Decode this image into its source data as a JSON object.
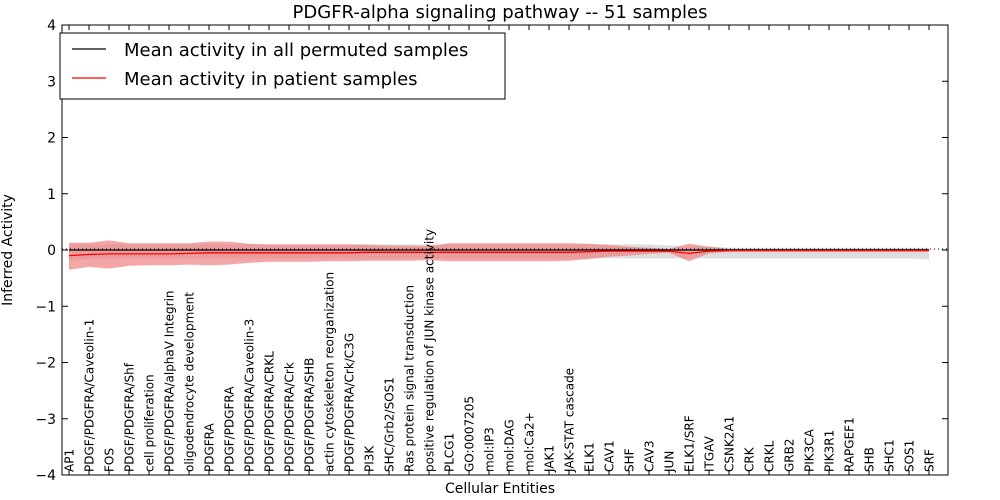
{
  "chart_data": {
    "type": "line",
    "title": "PDGFR-alpha signaling pathway -- 51 samples",
    "xlabel": "Cellular Entities",
    "ylabel": "Inferred Activity",
    "ylim": [
      -4,
      4
    ],
    "yticks": [
      "−4",
      "−3",
      "−2",
      "−1",
      "0",
      "1",
      "2",
      "3",
      "4"
    ],
    "grid": false,
    "legend_position": "top-left",
    "reference_line": 0,
    "categories": [
      "AP1",
      "PDGF/PDGFRA/Caveolin-1",
      "FOS",
      "PDGF/PDGFRA/Shf",
      "cell proliferation",
      "PDGF/PDGFRA/alphaV Integrin",
      "oligodendrocyte development",
      "PDGFRA",
      "PDGF/PDGFRA",
      "PDGF/PDGFRA/Caveolin-3",
      "PDGF/PDGFRA/CRKL",
      "PDGF/PDGFRA/Crk",
      "PDGF/PDGFRA/SHB",
      "actin cytoskeleton reorganization",
      "PDGF/PDGFRA/Crk/C3G",
      "PI3K",
      "SHC/Grb2/SOS1",
      "Ras protein signal transduction",
      "positive regulation of JUN kinase activity",
      "PLCG1",
      "GO:0007205",
      "mol:IP3",
      "mol:DAG",
      "mol:Ca2+",
      "JAK1",
      "JAK-STAT cascade",
      "ELK1",
      "CAV1",
      "SHF",
      "CAV3",
      "JUN",
      "ELK1/SRF",
      "ITGAV",
      "CSNK2A1",
      "CRK",
      "CRKL",
      "GRB2",
      "PIK3CA",
      "PIK3R1",
      "RAPGEF1",
      "SHB",
      "SHC1",
      "SOS1",
      "SRF"
    ],
    "series": [
      {
        "name": "Mean activity in all permuted samples",
        "color": "#000000",
        "values": [
          0,
          0,
          0,
          0,
          0,
          0,
          0,
          0,
          0,
          0,
          0,
          0,
          0,
          0,
          0,
          0,
          0,
          0,
          0,
          0,
          0,
          0,
          0,
          0,
          0,
          0,
          0,
          0,
          0,
          0,
          0,
          0,
          0,
          0,
          0,
          0,
          0,
          0,
          0,
          0,
          0,
          0,
          0,
          0
        ],
        "band_upper": [
          0.1,
          0.1,
          0.1,
          0.1,
          0.1,
          0.1,
          0.1,
          0.1,
          0.1,
          0.1,
          0.1,
          0.1,
          0.1,
          0.1,
          0.1,
          0.1,
          0.1,
          0.1,
          0.1,
          0.1,
          0.1,
          0.1,
          0.1,
          0.1,
          0.1,
          0.1,
          0.1,
          0.1,
          0.1,
          0.1,
          0.08,
          0.06,
          0.06,
          0.04,
          0.04,
          0.04,
          0.04,
          0.04,
          0.04,
          0.04,
          0.04,
          0.04,
          0.04,
          0.04
        ],
        "band_lower": [
          -0.18,
          -0.16,
          -0.16,
          -0.15,
          -0.15,
          -0.15,
          -0.15,
          -0.15,
          -0.15,
          -0.15,
          -0.15,
          -0.15,
          -0.15,
          -0.15,
          -0.15,
          -0.15,
          -0.15,
          -0.15,
          -0.15,
          -0.15,
          -0.15,
          -0.15,
          -0.15,
          -0.15,
          -0.15,
          -0.15,
          -0.15,
          -0.15,
          -0.15,
          -0.15,
          -0.15,
          -0.15,
          -0.15,
          -0.15,
          -0.15,
          -0.15,
          -0.15,
          -0.15,
          -0.15,
          -0.15,
          -0.15,
          -0.15,
          -0.15,
          -0.17
        ],
        "band_color": "#c8c8c8"
      },
      {
        "name": "Mean activity in patient samples",
        "color": "#ff0000",
        "values": [
          -0.1,
          -0.08,
          -0.07,
          -0.07,
          -0.07,
          -0.07,
          -0.06,
          -0.05,
          -0.05,
          -0.05,
          -0.05,
          -0.05,
          -0.05,
          -0.05,
          -0.05,
          -0.04,
          -0.04,
          -0.04,
          -0.04,
          -0.04,
          -0.04,
          -0.04,
          -0.04,
          -0.04,
          -0.04,
          -0.04,
          -0.03,
          -0.02,
          -0.02,
          -0.02,
          -0.02,
          -0.06,
          -0.02,
          -0.01,
          -0.01,
          -0.01,
          -0.01,
          -0.01,
          -0.01,
          -0.01,
          -0.01,
          -0.01,
          -0.01,
          -0.01
        ],
        "band_upper": [
          0.13,
          0.13,
          0.17,
          0.12,
          0.12,
          0.12,
          0.12,
          0.15,
          0.15,
          0.11,
          0.1,
          0.1,
          0.1,
          0.1,
          0.1,
          0.09,
          0.08,
          0.08,
          0.07,
          0.12,
          0.12,
          0.12,
          0.12,
          0.12,
          0.12,
          0.12,
          0.11,
          0.09,
          0.06,
          0.04,
          0.02,
          0.11,
          0.06,
          0.02,
          0.02,
          0.02,
          0.02,
          0.02,
          0.02,
          0.02,
          0.02,
          0.02,
          0.02,
          0.02
        ],
        "band_lower": [
          -0.35,
          -0.3,
          -0.33,
          -0.28,
          -0.27,
          -0.27,
          -0.26,
          -0.27,
          -0.26,
          -0.23,
          -0.21,
          -0.21,
          -0.21,
          -0.2,
          -0.2,
          -0.19,
          -0.19,
          -0.19,
          -0.18,
          -0.2,
          -0.2,
          -0.2,
          -0.2,
          -0.2,
          -0.2,
          -0.19,
          -0.16,
          -0.12,
          -0.1,
          -0.07,
          -0.05,
          -0.2,
          -0.06,
          -0.03,
          -0.03,
          -0.03,
          -0.03,
          -0.03,
          -0.03,
          -0.03,
          -0.03,
          -0.03,
          -0.03,
          -0.03
        ],
        "band_color": "#f08080"
      }
    ]
  }
}
